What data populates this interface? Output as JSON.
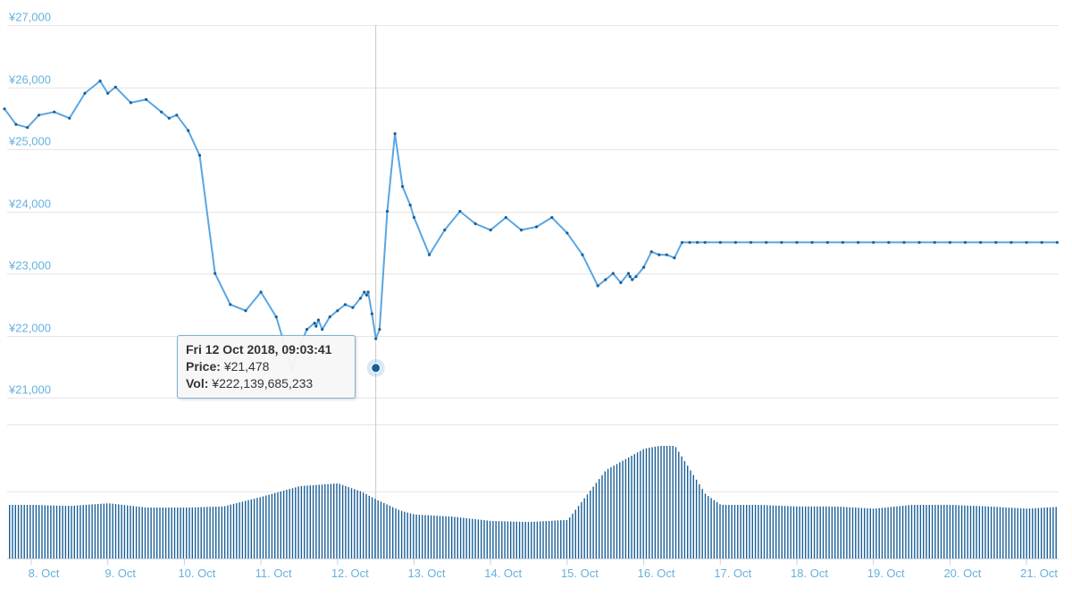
{
  "colors": {
    "line": "#5aa6e2",
    "marker": "#1a5f96",
    "grid": "#e6e6e6",
    "tick_text": "#66b2de",
    "volume": "#1a5f96",
    "crosshair": "#c8c8c8"
  },
  "tooltip": {
    "date": "Fri 12 Oct 2018, 09:03:41",
    "price_label": "Price:",
    "price_value": "¥21,478",
    "vol_label": "Vol:",
    "vol_value": "¥222,139,685,233"
  },
  "chart_data": {
    "type": "line",
    "title": "",
    "xlabel": "",
    "ylabel": "",
    "y_ticks": [
      "¥21,000",
      "¥22,000",
      "¥23,000",
      "¥24,000",
      "¥25,000",
      "¥26,000",
      "¥27,000"
    ],
    "ylim": [
      21000,
      27000
    ],
    "x_ticks": [
      "8. Oct",
      "9. Oct",
      "10. Oct",
      "11. Oct",
      "12. Oct",
      "13. Oct",
      "14. Oct",
      "15. Oct",
      "16. Oct",
      "17. Oct",
      "18. Oct",
      "19. Oct",
      "20. Oct",
      "21. Oct"
    ],
    "grid": true,
    "price_series": {
      "day_offset": [
        -0.35,
        -0.2,
        -0.05,
        0.1,
        0.3,
        0.5,
        0.7,
        0.9,
        1.0,
        1.1,
        1.3,
        1.5,
        1.7,
        1.8,
        1.9,
        2.05,
        2.2,
        2.4,
        2.6,
        2.8,
        3.0,
        3.2,
        3.4,
        3.5,
        3.6,
        3.7,
        3.72,
        3.75,
        3.8,
        3.9,
        4.0,
        4.1,
        4.2,
        4.3,
        4.35,
        4.38,
        4.4,
        4.45,
        4.5,
        4.55,
        4.65,
        4.75,
        4.85,
        4.95,
        5.0,
        5.2,
        5.4,
        5.6,
        5.8,
        6.0,
        6.2,
        6.4,
        6.6,
        6.8,
        7.0,
        7.2,
        7.4,
        7.5,
        7.6,
        7.7,
        7.8,
        7.82,
        7.85,
        7.9,
        8.0,
        8.1,
        8.2,
        8.3,
        8.4,
        8.5,
        8.6,
        8.7,
        8.8,
        9.0,
        9.2,
        9.4,
        9.6,
        9.8,
        10.0,
        10.2,
        10.4,
        10.6,
        10.8,
        11.0,
        11.2,
        11.4,
        11.6,
        11.8,
        12.0,
        12.2,
        12.4,
        12.6,
        12.8,
        13.0,
        13.2,
        13.4,
        13.6
      ],
      "price": [
        25650,
        25400,
        25350,
        25550,
        25600,
        25500,
        25900,
        26100,
        25900,
        26000,
        25750,
        25800,
        25600,
        25500,
        25550,
        25300,
        24900,
        23000,
        22500,
        22400,
        22700,
        22300,
        21478,
        21800,
        22100,
        22200,
        22150,
        22250,
        22100,
        22300,
        22400,
        22500,
        22450,
        22600,
        22700,
        22650,
        22700,
        22350,
        21950,
        22100,
        24000,
        25250,
        24400,
        24100,
        23900,
        23300,
        23700,
        24000,
        23800,
        23700,
        23900,
        23700,
        23750,
        23900,
        23650,
        23300,
        22800,
        22900,
        23000,
        22850,
        23000,
        22950,
        22900,
        22950,
        23100,
        23350,
        23300,
        23300,
        23250,
        23500,
        23500,
        23500,
        23500,
        23500,
        23500,
        23500,
        23500,
        23500,
        23500,
        23500,
        23500,
        23500,
        23500,
        23500,
        23500,
        23500,
        23500,
        23500,
        23500,
        23500,
        23500,
        23500,
        23500,
        23500,
        23500,
        23500,
        23500
      ]
    },
    "volume_series": {
      "day_offset": [
        -0.35,
        0.0,
        0.5,
        1.0,
        1.5,
        2.0,
        2.5,
        3.0,
        3.5,
        4.0,
        4.3,
        4.5,
        4.8,
        5.0,
        5.5,
        6.0,
        6.5,
        7.0,
        7.5,
        8.0,
        8.2,
        8.4,
        8.6,
        8.8,
        9.0,
        9.5,
        10.0,
        10.5,
        11.0,
        11.5,
        12.0,
        12.5,
        13.0,
        13.5
      ],
      "volume": [
        100,
        100,
        98,
        103,
        95,
        95,
        97,
        115,
        135,
        140,
        125,
        110,
        90,
        82,
        78,
        70,
        68,
        72,
        165,
        205,
        210,
        210,
        165,
        120,
        100,
        100,
        97,
        97,
        93,
        100,
        100,
        97,
        93,
        97
      ]
    }
  }
}
